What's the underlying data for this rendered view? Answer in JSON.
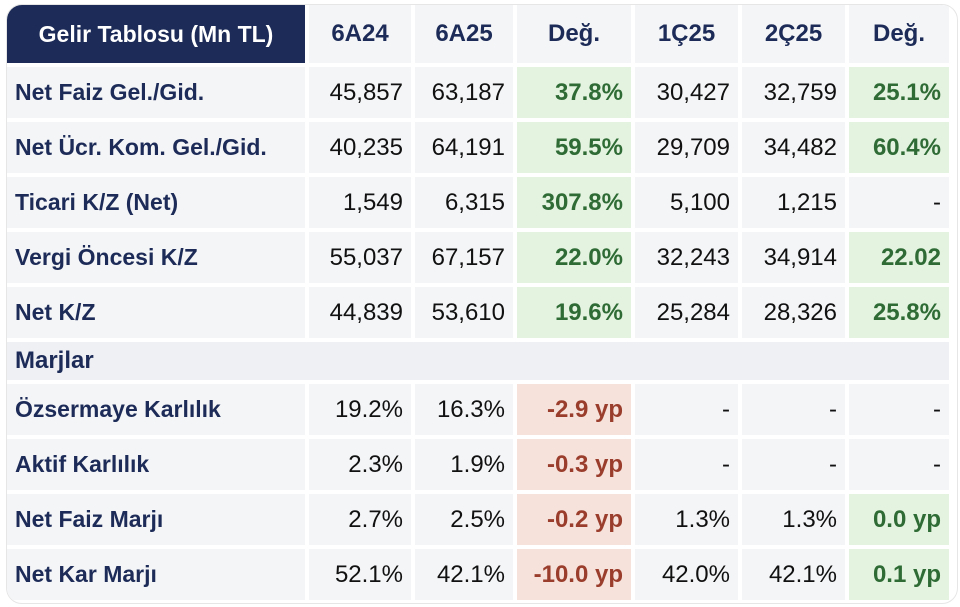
{
  "table": {
    "corner": "Gelir Tablosu (Mn TL)",
    "columns": [
      "6A24",
      "6A25",
      "Değ.",
      "1Ç25",
      "2Ç25",
      "Değ."
    ],
    "rows": [
      {
        "label": "Net Faiz Gel./Gid.",
        "cells": [
          "45,857",
          "63,187",
          "37.8%",
          "30,427",
          "32,759",
          "25.1%"
        ],
        "styles": [
          "num",
          "num",
          "pos",
          "num",
          "num",
          "pos"
        ]
      },
      {
        "label": "Net Ücr. Kom. Gel./Gid.",
        "cells": [
          "40,235",
          "64,191",
          "59.5%",
          "29,709",
          "34,482",
          "60.4%"
        ],
        "styles": [
          "num",
          "num",
          "pos",
          "num",
          "num",
          "pos"
        ]
      },
      {
        "label": "Ticari K/Z (Net)",
        "cells": [
          "1,549",
          "6,315",
          "307.8%",
          "5,100",
          "1,215",
          "-"
        ],
        "styles": [
          "num",
          "num",
          "pos",
          "num",
          "num",
          "plain"
        ]
      },
      {
        "label": "Vergi Öncesi K/Z",
        "cells": [
          "55,037",
          "67,157",
          "22.0%",
          "32,243",
          "34,914",
          "22.02"
        ],
        "styles": [
          "num",
          "num",
          "pos",
          "num",
          "num",
          "pos"
        ]
      },
      {
        "label": "Net K/Z",
        "cells": [
          "44,839",
          "53,610",
          "19.6%",
          "25,284",
          "28,326",
          "25.8%"
        ],
        "styles": [
          "num",
          "num",
          "pos",
          "num",
          "num",
          "pos"
        ]
      }
    ],
    "section_label": "Marjlar",
    "margin_rows": [
      {
        "label": "Özsermaye Karlılık",
        "cells": [
          "19.2%",
          "16.3%",
          "-2.9 yp",
          "-",
          "-",
          "-"
        ],
        "styles": [
          "num",
          "num",
          "neg",
          "num",
          "num",
          "plain"
        ]
      },
      {
        "label": "Aktif Karlılık",
        "cells": [
          "2.3%",
          "1.9%",
          "-0.3 yp",
          "-",
          "-",
          "-"
        ],
        "styles": [
          "num",
          "num",
          "neg",
          "num",
          "num",
          "plain"
        ]
      },
      {
        "label": "Net Faiz Marjı",
        "cells": [
          "2.7%",
          "2.5%",
          "-0.2 yp",
          "1.3%",
          "1.3%",
          "0.0 yp"
        ],
        "styles": [
          "num",
          "num",
          "neg",
          "num",
          "num",
          "pos"
        ]
      },
      {
        "label": "Net Kar Marjı",
        "cells": [
          "52.1%",
          "42.1%",
          "-10.0 yp",
          "42.0%",
          "42.1%",
          "0.1 yp"
        ],
        "styles": [
          "num",
          "num",
          "neg",
          "num",
          "num",
          "pos"
        ]
      }
    ]
  },
  "colors": {
    "header_bg": "#1c2b57",
    "label_text": "#1c2b57",
    "positive_bg": "#e3f3df",
    "positive_text": "#2e6b35",
    "negative_bg": "#f6e2da",
    "negative_text": "#9a3d2c"
  }
}
